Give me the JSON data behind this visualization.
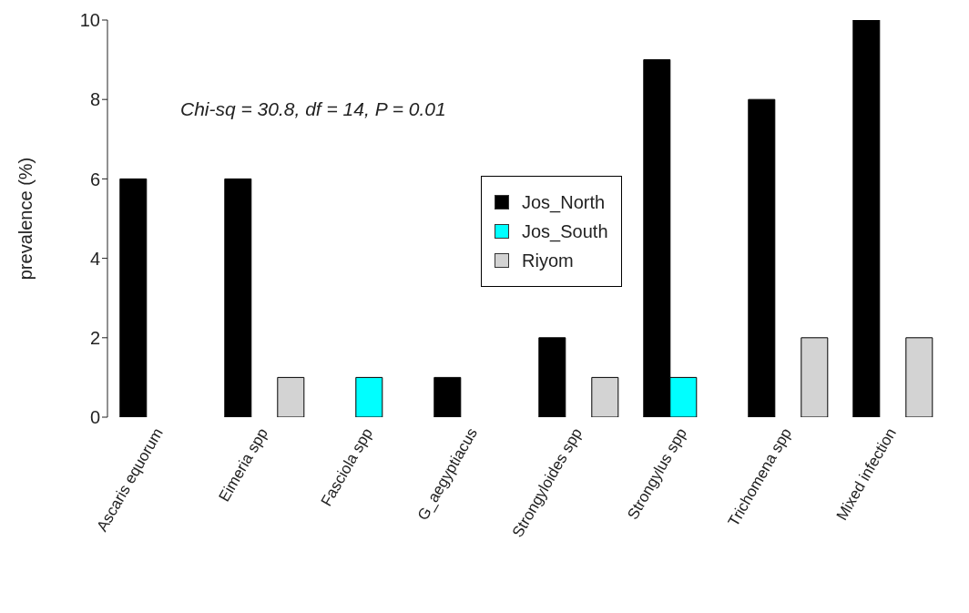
{
  "chart_data": {
    "type": "bar",
    "ylabel": "prevalence (%)",
    "categories": [
      "Ascaris equorum",
      "Eimeria spp",
      "Fasciola spp",
      "G_aegyptiacus",
      "Strongyloides spp",
      "Strongylus spp",
      "Trichomena spp",
      "Mixed infection"
    ],
    "series": [
      {
        "name": "Jos_North",
        "color": "#000000",
        "values": [
          6,
          6,
          0,
          1,
          2,
          9,
          8,
          10
        ]
      },
      {
        "name": "Jos_South",
        "color": "#00ffff",
        "values": [
          0,
          0,
          1,
          0,
          0,
          1,
          0,
          0
        ]
      },
      {
        "name": "Riyom",
        "color": "#d3d3d3",
        "values": [
          0,
          1,
          0,
          0,
          1,
          0,
          2,
          2
        ]
      }
    ],
    "ylim": [
      0,
      10
    ],
    "yticks": [
      0,
      2,
      4,
      6,
      8,
      10
    ],
    "grid": false,
    "legend": "center",
    "annotations": [
      "Chi-sq = 30.8, df = 14, P = 0.01"
    ]
  }
}
